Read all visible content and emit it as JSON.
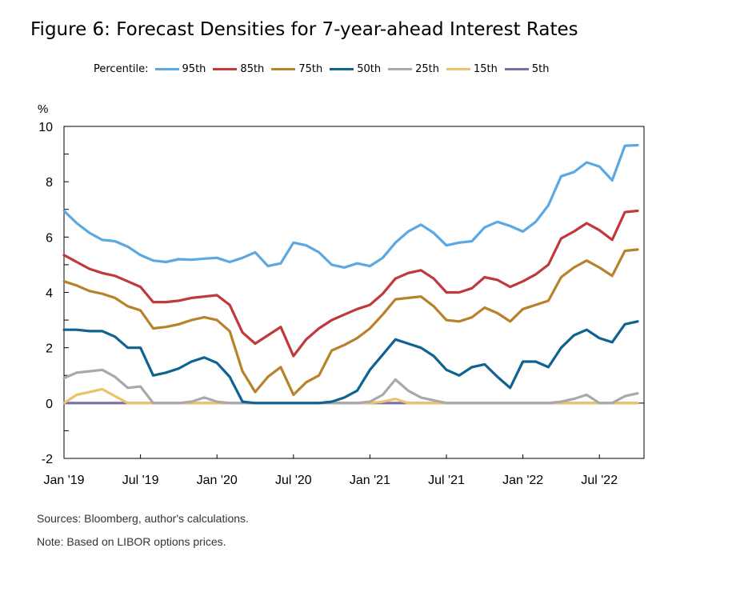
{
  "title": "Figure 6: Forecast Densities for 7-year-ahead Interest Rates",
  "legend_label": "Percentile:",
  "sources": "Sources: Bloomberg, author's calculations.",
  "note": "Note: Based on LIBOR options prices.",
  "chart_data": {
    "type": "line",
    "title": "Figure 6: Forecast Densities for 7-year-ahead Interest Rates",
    "ylabel": "%",
    "xlabel": "",
    "ylim": [
      -2,
      10
    ],
    "yticks": [
      -2,
      0,
      2,
      4,
      6,
      8,
      10
    ],
    "grid": false,
    "legend_position": "top",
    "x_tick_labels": [
      "Jan '19",
      "Jul '19",
      "Jan '20",
      "Jul '20",
      "Jan '21",
      "Jul '21",
      "Jan '22",
      "Jul '22"
    ],
    "x_tick_months": [
      0,
      6,
      12,
      18,
      24,
      30,
      36,
      42
    ],
    "x_months": [
      0,
      1,
      2,
      3,
      4,
      5,
      6,
      7,
      8,
      9,
      10,
      11,
      12,
      13,
      14,
      15,
      16,
      17,
      18,
      19,
      20,
      21,
      22,
      23,
      24,
      25,
      26,
      27,
      28,
      29,
      30,
      31,
      32,
      33,
      34,
      35,
      36,
      37,
      38,
      39,
      40,
      41,
      42,
      43,
      44,
      45
    ],
    "series": [
      {
        "name": "95th",
        "color": "#5ba8e3",
        "values": [
          6.95,
          6.5,
          6.15,
          5.9,
          5.85,
          5.65,
          5.35,
          5.15,
          5.1,
          5.2,
          5.18,
          5.22,
          5.25,
          5.1,
          5.25,
          5.45,
          4.95,
          5.05,
          5.8,
          5.7,
          5.45,
          5.0,
          4.9,
          5.05,
          4.95,
          5.25,
          5.8,
          6.2,
          6.45,
          6.15,
          5.7,
          5.8,
          5.85,
          6.35,
          6.55,
          6.4,
          6.2,
          6.55,
          7.15,
          8.2,
          8.35,
          8.7,
          8.55,
          8.05,
          9.3,
          9.32
        ]
      },
      {
        "name": "85th",
        "color": "#c0393b",
        "values": [
          5.35,
          5.1,
          4.85,
          4.7,
          4.6,
          4.4,
          4.2,
          3.65,
          3.65,
          3.7,
          3.8,
          3.85,
          3.9,
          3.55,
          2.55,
          2.15,
          2.45,
          2.75,
          1.7,
          2.3,
          2.7,
          3.0,
          3.2,
          3.4,
          3.55,
          3.95,
          4.5,
          4.7,
          4.8,
          4.5,
          4.0,
          4.0,
          4.15,
          4.55,
          4.45,
          4.2,
          4.4,
          4.65,
          5.0,
          5.95,
          6.2,
          6.5,
          6.25,
          5.9,
          6.9,
          6.95
        ]
      },
      {
        "name": "75th",
        "color": "#b8822b",
        "values": [
          4.4,
          4.25,
          4.05,
          3.95,
          3.8,
          3.5,
          3.35,
          2.7,
          2.75,
          2.85,
          3.0,
          3.1,
          3.0,
          2.6,
          1.15,
          0.4,
          0.95,
          1.3,
          0.3,
          0.75,
          1.0,
          1.9,
          2.1,
          2.35,
          2.7,
          3.2,
          3.75,
          3.8,
          3.85,
          3.5,
          3.0,
          2.95,
          3.1,
          3.45,
          3.25,
          2.95,
          3.4,
          3.55,
          3.7,
          4.55,
          4.9,
          5.15,
          4.9,
          4.6,
          5.5,
          5.55
        ]
      },
      {
        "name": "50th",
        "color": "#0f6391",
        "values": [
          2.65,
          2.65,
          2.6,
          2.6,
          2.4,
          2.0,
          2.0,
          1.0,
          1.1,
          1.25,
          1.5,
          1.65,
          1.45,
          0.95,
          0.05,
          0.0,
          0.0,
          0.0,
          0.0,
          0.0,
          0.0,
          0.05,
          0.2,
          0.45,
          1.2,
          1.75,
          2.3,
          2.15,
          2.0,
          1.7,
          1.2,
          1.0,
          1.3,
          1.4,
          0.95,
          0.55,
          1.5,
          1.5,
          1.3,
          2.0,
          2.45,
          2.65,
          2.35,
          2.2,
          2.85,
          2.95
        ]
      },
      {
        "name": "25th",
        "color": "#a8a8ad",
        "values": [
          0.9,
          1.1,
          1.15,
          1.2,
          0.95,
          0.55,
          0.6,
          0.0,
          0.0,
          0.0,
          0.05,
          0.2,
          0.05,
          0.0,
          0.0,
          0.0,
          0.0,
          0.0,
          0.0,
          0.0,
          0.0,
          0.0,
          0.0,
          0.0,
          0.05,
          0.3,
          0.85,
          0.45,
          0.2,
          0.1,
          0.0,
          0.0,
          0.0,
          0.0,
          0.0,
          0.0,
          0.0,
          0.0,
          0.0,
          0.05,
          0.15,
          0.3,
          0.0,
          0.0,
          0.25,
          0.35
        ]
      },
      {
        "name": "15th",
        "color": "#e9c46a",
        "values": [
          0.0,
          0.3,
          0.4,
          0.5,
          0.25,
          0.0,
          0.0,
          0.0,
          0.0,
          0.0,
          0.0,
          0.0,
          0.0,
          0.0,
          0.0,
          0.0,
          0.0,
          0.0,
          0.0,
          0.0,
          0.0,
          0.0,
          0.0,
          0.0,
          0.0,
          0.05,
          0.15,
          0.0,
          0.0,
          0.0,
          0.0,
          0.0,
          0.0,
          0.0,
          0.0,
          0.0,
          0.0,
          0.0,
          0.0,
          0.0,
          0.0,
          0.0,
          0.0,
          0.0,
          0.0,
          0.0
        ]
      },
      {
        "name": "5th",
        "color": "#7d6ca8",
        "values": [
          0.0,
          0.0,
          0.0,
          0.0,
          0.0,
          0.0,
          0.0,
          0.0,
          0.0,
          0.0,
          0.0,
          0.0,
          0.0,
          0.0,
          0.0,
          0.0,
          0.0,
          0.0,
          0.0,
          0.0,
          0.0,
          0.0,
          0.0,
          0.0,
          0.0,
          0.0,
          0.0,
          0.0,
          0.0,
          0.0,
          0.0,
          0.0,
          0.0,
          0.0,
          0.0,
          0.0,
          0.0,
          0.0,
          0.0,
          0.0,
          0.0,
          0.0,
          0.0,
          0.0,
          0.0,
          0.0
        ]
      }
    ]
  }
}
